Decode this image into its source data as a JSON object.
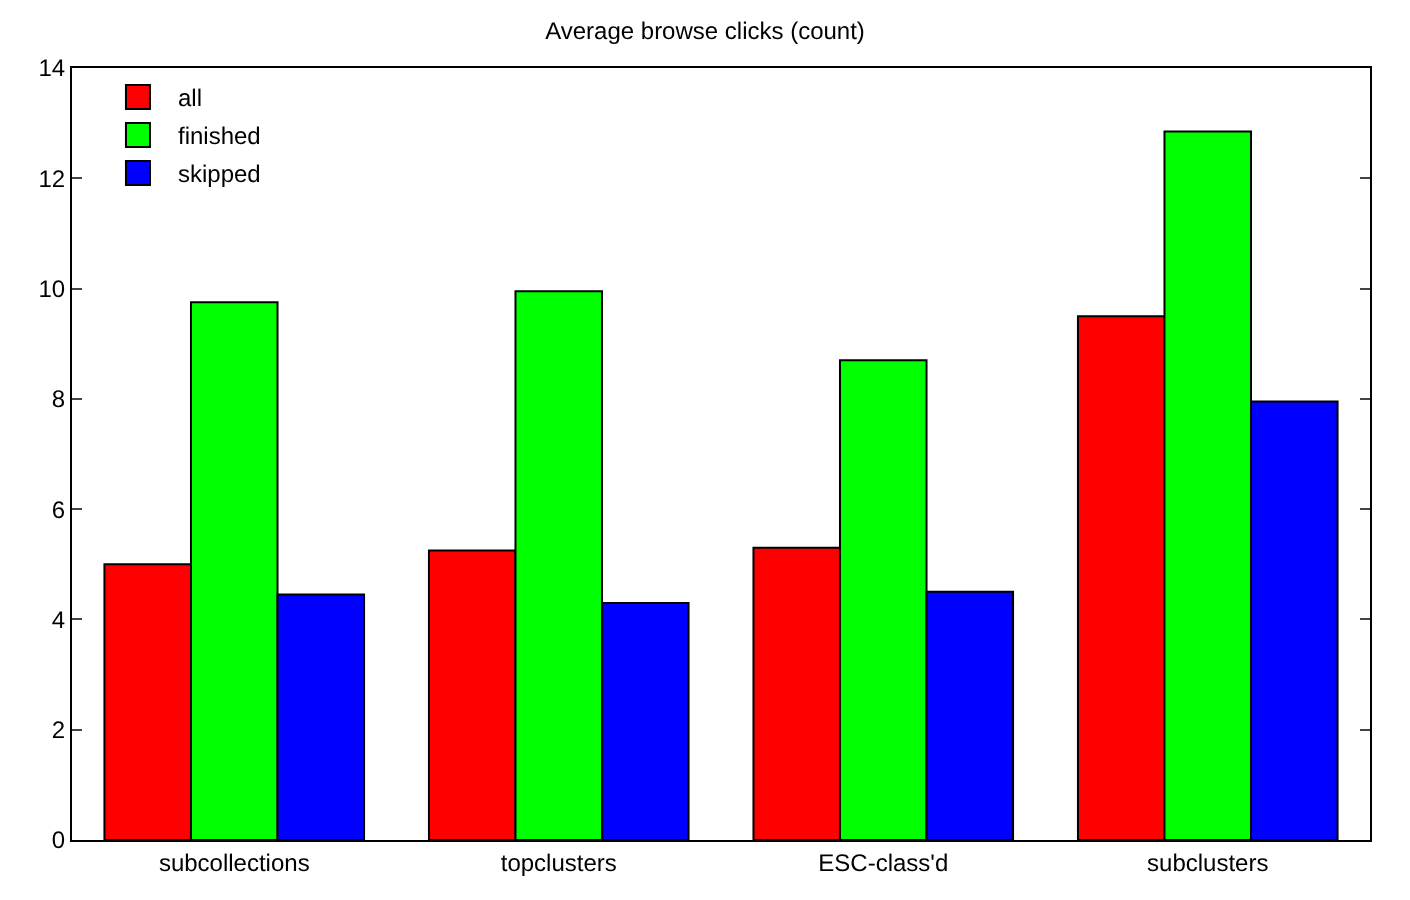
{
  "chart_data": {
    "type": "bar",
    "title": "Average browse clicks (count)",
    "categories": [
      "subcollections",
      "topclusters",
      "ESC-class'd",
      "subclusters"
    ],
    "series": [
      {
        "name": "all",
        "color": "#ff0000",
        "values": [
          5.0,
          5.25,
          5.3,
          9.5
        ]
      },
      {
        "name": "finished",
        "color": "#00ff00",
        "values": [
          9.75,
          9.95,
          8.7,
          12.85
        ]
      },
      {
        "name": "skipped",
        "color": "#0000ff",
        "values": [
          4.45,
          4.3,
          4.5,
          7.95
        ]
      }
    ],
    "ylim": [
      0,
      14
    ],
    "yticks": [
      0,
      2,
      4,
      6,
      8,
      10,
      12,
      14
    ],
    "grid": false,
    "legend": "top left"
  }
}
